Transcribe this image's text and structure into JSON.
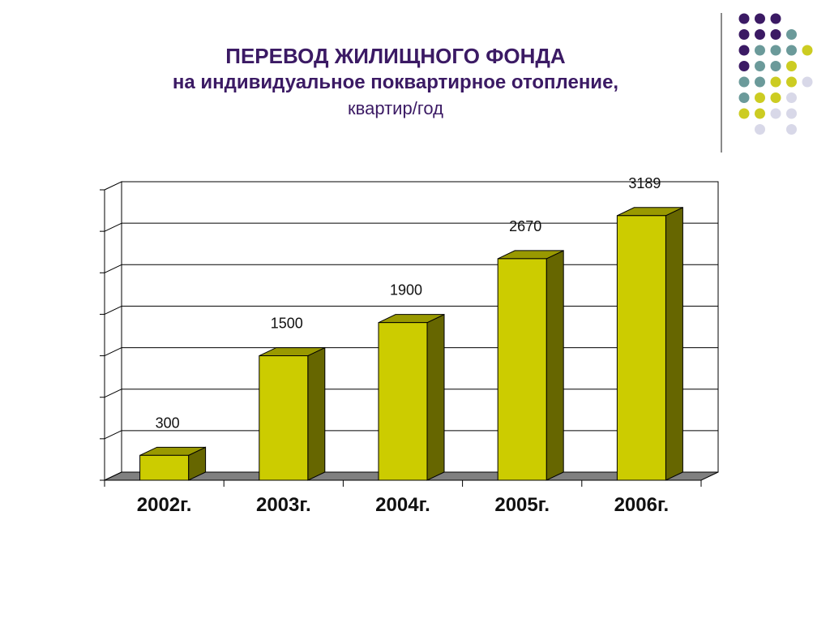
{
  "title": {
    "line1": "ПЕРЕВОД ЖИЛИЩНОГО ФОНДА",
    "line2": "на индивидуальное поквартирное отопление,",
    "line3": "квартир/год"
  },
  "colors": {
    "title": "#3b1a64",
    "bar_front": "#cccc00",
    "bar_side": "#666600",
    "bar_top": "#999900",
    "floor": "#808080",
    "deco_purple": "#3b1a64",
    "deco_teal": "#6b9a9a",
    "deco_yellow": "#cccc22",
    "deco_lavender": "#d8d8e8"
  },
  "decor": {
    "dot_grid": [
      [
        "purple",
        "purple",
        "purple",
        null,
        null
      ],
      [
        "purple",
        "purple",
        "purple",
        "teal",
        null
      ],
      [
        "purple",
        "teal",
        "teal",
        "teal",
        "yellow"
      ],
      [
        "purple",
        "teal",
        "teal",
        "yellow",
        null
      ],
      [
        "teal",
        "teal",
        "yellow",
        "yellow",
        "lavender"
      ],
      [
        "teal",
        "yellow",
        "yellow",
        "lavender",
        null
      ],
      [
        "yellow",
        "yellow",
        "lavender",
        "lavender",
        null
      ],
      [
        null,
        "lavender",
        null,
        "lavender",
        null
      ]
    ]
  },
  "chart_data": {
    "type": "bar",
    "categories": [
      "2002г.",
      "2003г.",
      "2004г.",
      "2005г.",
      "2006г."
    ],
    "values": [
      300,
      1500,
      1900,
      2670,
      3189
    ],
    "data_labels": [
      "300",
      "1500",
      "1900",
      "2670",
      "3189"
    ],
    "ylim": [
      0,
      3500
    ],
    "grid": true,
    "three_d": true
  }
}
